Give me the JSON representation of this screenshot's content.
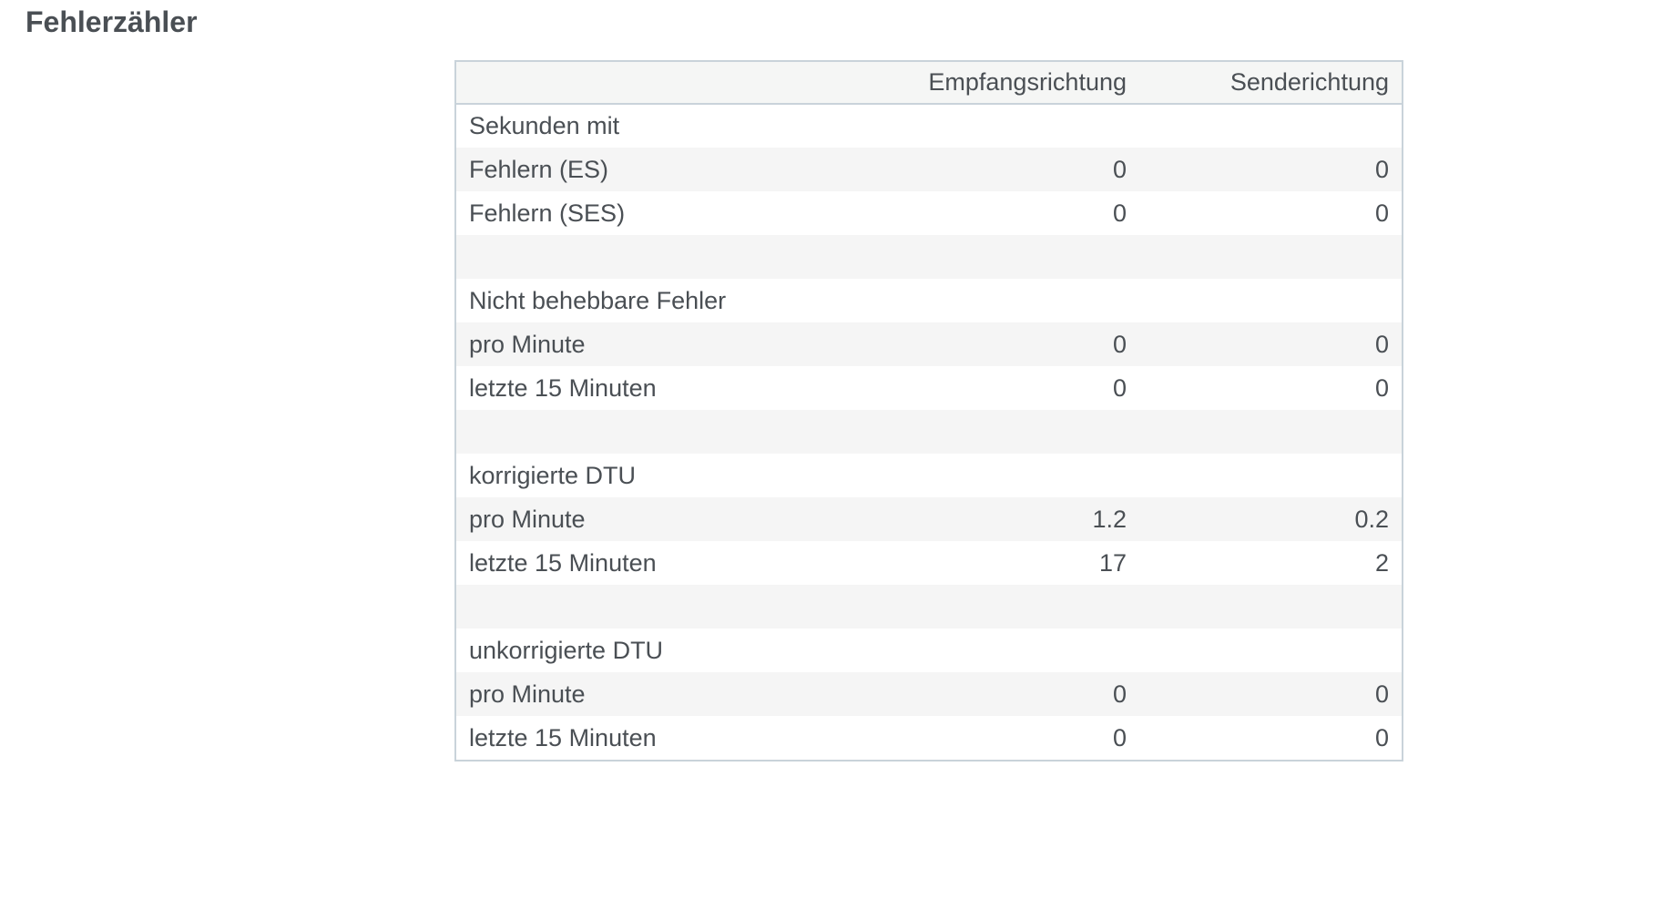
{
  "section": {
    "title": "Fehlerzähler"
  },
  "table": {
    "headers": [
      "",
      "Empfangsrichtung",
      "Senderichtung"
    ],
    "rows": [
      {
        "label": "Sekunden mit",
        "rx": "",
        "tx": ""
      },
      {
        "label": "Fehlern (ES)",
        "rx": "0",
        "tx": "0"
      },
      {
        "label": "Fehlern (SES)",
        "rx": "0",
        "tx": "0"
      },
      {
        "label": "",
        "rx": "",
        "tx": ""
      },
      {
        "label": "Nicht behebbare Fehler",
        "rx": "",
        "tx": ""
      },
      {
        "label": "pro Minute",
        "rx": "0",
        "tx": "0"
      },
      {
        "label": "letzte 15 Minuten",
        "rx": "0",
        "tx": "0"
      },
      {
        "label": "",
        "rx": "",
        "tx": ""
      },
      {
        "label": "korrigierte DTU",
        "rx": "",
        "tx": ""
      },
      {
        "label": "pro Minute",
        "rx": "1.2",
        "tx": "0.2"
      },
      {
        "label": "letzte 15 Minuten",
        "rx": "17",
        "tx": "2"
      },
      {
        "label": "",
        "rx": "",
        "tx": ""
      },
      {
        "label": "unkorrigierte DTU",
        "rx": "",
        "tx": ""
      },
      {
        "label": "pro Minute",
        "rx": "0",
        "tx": "0"
      },
      {
        "label": "letzte 15 Minuten",
        "rx": "0",
        "tx": "0"
      }
    ]
  }
}
